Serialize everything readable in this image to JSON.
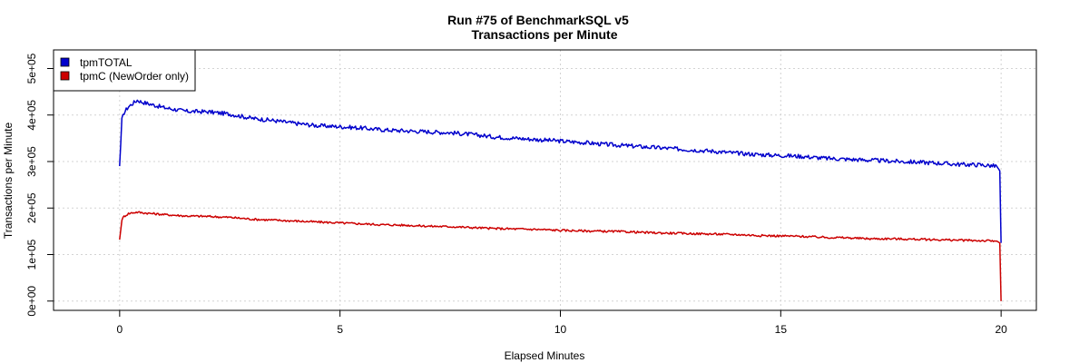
{
  "chart_data": {
    "type": "line",
    "title": "Run #75 of BenchmarkSQL v5",
    "subtitle": "Transactions per Minute",
    "xlabel": "Elapsed Minutes",
    "ylabel": "Transactions per Minute",
    "xlim": [
      -1.5,
      20.8
    ],
    "ylim": [
      -20000,
      540000
    ],
    "x_ticks": [
      0,
      5,
      10,
      15,
      20
    ],
    "x_tick_labels": [
      "0",
      "5",
      "10",
      "15",
      "20"
    ],
    "y_ticks": [
      0,
      100000,
      200000,
      300000,
      400000,
      500000
    ],
    "y_tick_labels": [
      "0e+00",
      "1e+05",
      "2e+05",
      "3e+05",
      "4e+05",
      "5e+05"
    ],
    "grid": true,
    "legend_position": "top-left",
    "series": [
      {
        "name": "tpmTOTAL",
        "color": "#0000cc",
        "x": [
          0,
          0.05,
          0.1,
          0.2,
          0.3,
          0.4,
          0.5,
          0.75,
          1,
          1.5,
          2,
          2.5,
          3,
          3.5,
          4,
          4.5,
          5,
          5.5,
          6,
          6.5,
          7,
          7.5,
          8,
          8.5,
          9,
          9.5,
          10,
          10.5,
          11,
          11.5,
          12,
          12.5,
          13,
          13.5,
          14,
          14.5,
          15,
          15.5,
          16,
          16.5,
          17,
          17.5,
          18,
          18.5,
          19,
          19.5,
          19.9,
          19.97,
          20
        ],
        "y": [
          290000,
          390000,
          405000,
          418000,
          425000,
          432000,
          428000,
          422000,
          416000,
          408000,
          407000,
          402000,
          393000,
          388000,
          382000,
          377000,
          375000,
          372000,
          368000,
          366000,
          364000,
          362000,
          358000,
          353000,
          350000,
          347000,
          344000,
          341000,
          337000,
          334000,
          331000,
          328000,
          325000,
          322000,
          318000,
          315000,
          313000,
          311000,
          307000,
          305000,
          303000,
          301000,
          299000,
          297000,
          294000,
          293000,
          290000,
          280000,
          125000
        ]
      },
      {
        "name": "tpmC (NewOrder only)",
        "color": "#cc0000",
        "x": [
          0,
          0.05,
          0.1,
          0.2,
          0.3,
          0.4,
          0.5,
          0.75,
          1,
          1.5,
          2,
          2.5,
          3,
          3.5,
          4,
          4.5,
          5,
          5.5,
          6,
          6.5,
          7,
          7.5,
          8,
          8.5,
          9,
          9.5,
          10,
          10.5,
          11,
          11.5,
          12,
          12.5,
          13,
          13.5,
          14,
          14.5,
          15,
          15.5,
          16,
          16.5,
          17,
          17.5,
          18,
          18.5,
          19,
          19.5,
          19.9,
          19.97,
          20
        ],
        "y": [
          132000,
          175000,
          182000,
          188000,
          190000,
          191000,
          190000,
          188000,
          186000,
          183000,
          182000,
          180000,
          176000,
          174000,
          172000,
          170000,
          168000,
          166000,
          164000,
          163000,
          161000,
          160000,
          158000,
          156000,
          155000,
          154000,
          152000,
          151000,
          150000,
          149000,
          147000,
          146000,
          145000,
          144000,
          143000,
          141000,
          140000,
          139000,
          137000,
          136000,
          134000,
          134000,
          133000,
          132000,
          131000,
          130000,
          129000,
          125000,
          0
        ]
      }
    ]
  }
}
